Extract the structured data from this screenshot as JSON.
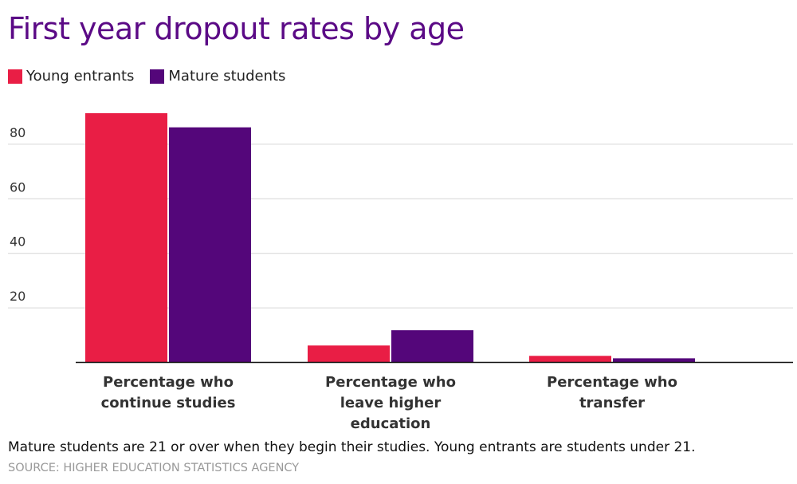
{
  "chart_data": {
    "type": "bar",
    "title": "First year dropout rates by age",
    "categories": [
      [
        "Percentage who",
        "continue studies"
      ],
      [
        "Percentage who",
        "leave higher",
        "education"
      ],
      [
        "Percentage who",
        "transfer"
      ]
    ],
    "series": [
      {
        "name": "Young entrants",
        "color": "#e91e45",
        "values": [
          91.4,
          6.2,
          2.4
        ]
      },
      {
        "name": "Mature students",
        "color": "#54067a",
        "values": [
          86.2,
          11.8,
          1.5
        ]
      }
    ],
    "yticks": [
      "20",
      "40",
      "60",
      "80"
    ],
    "ylim": [
      0,
      95
    ],
    "grid": true,
    "legend_placement": "top-left",
    "xlabel": "",
    "ylabel": ""
  },
  "note": "Mature students are 21 or over when they begin their studies. Young entrants are students under 21.",
  "source": "SOURCE: HIGHER EDUCATION STATISTICS AGENCY"
}
